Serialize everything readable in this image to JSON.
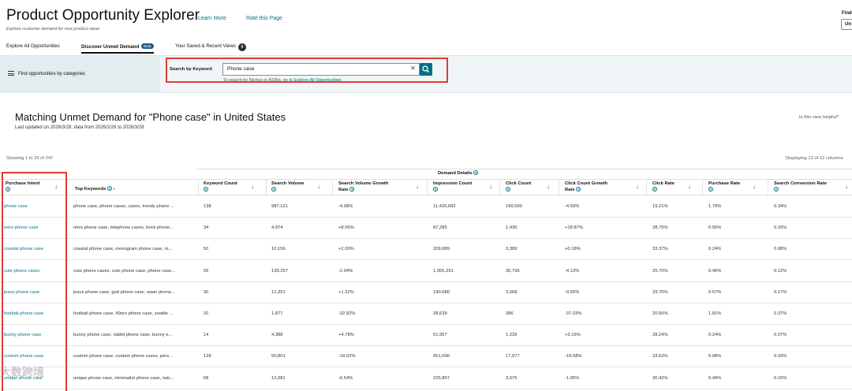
{
  "header": {
    "title": "Product Opportunity Explorer",
    "learn_more": "Learn More",
    "rate_page": "Rate this Page",
    "subtitle": "Explore customer demand for new product ideas",
    "find_label": "Find",
    "find_value": "Un"
  },
  "tabs": [
    {
      "label": "Explore All Opportunities"
    },
    {
      "label": "Discover Unmet Demand",
      "badge": "Beta"
    },
    {
      "label": "Your Saved & Recent Views",
      "count": "0"
    }
  ],
  "search": {
    "category_label": "Find opportunities by categories",
    "label": "Search by Keyword",
    "value": "Phone case",
    "hint_prefix": "To search by Niches or ASINs, go to ",
    "hint_link": "Explore All Opportunities"
  },
  "results": {
    "title": "Matching Unmet Demand for \"Phone case\" in United States",
    "updated": "Last updated on 2026/3/28; data from 2026/2/26 to 2026/3/28",
    "helpful": "Is this view helpful?",
    "showing": "Showing 1 to 25 of 247",
    "displaying": "Displaying 12 of 12 columns"
  },
  "table": {
    "group_label": "Demand Details",
    "columns": {
      "intent": "Purchase Intent",
      "top_keywords": "Top Keywords",
      "keyword_count": "Keyword Count",
      "search_volume": "Search Volume",
      "sv_growth_1": "Search Volume Growth",
      "sv_growth_2": "Rate",
      "impression_count": "Impression Count",
      "click_count": "Click Count",
      "cc_growth_1": "Click Count Growth",
      "cc_growth_2": "Rate",
      "click_rate": "Click Rate",
      "purchase_rate": "Purchase Rate",
      "search_conversion_rate": "Search Conversion Rate"
    },
    "rows": [
      {
        "intent": "phone case",
        "keywords": "phone case, phone cases, cases, trendy phone ...",
        "kc": "138",
        "sv": "987,121",
        "svg": "-4.08%",
        "imp": "11,425,682",
        "cc": "189,590",
        "ccg": "-4.59%",
        "cr": "19.21%",
        "pr": "1.79%",
        "scr": "0.34%"
      },
      {
        "intent": "retro phone case",
        "keywords": "retro phone case, telephone cases, brick phone...",
        "kc": "34",
        "sv": "4,974",
        "svg": "+8.56%",
        "imp": "87,285",
        "cc": "1,430",
        "ccg": "+18.87%",
        "cr": "28.75%",
        "pr": "0.56%",
        "scr": "0.16%"
      },
      {
        "intent": "coastal phone case",
        "keywords": "coastal phone case, monogram phone case, m...",
        "kc": "50",
        "sv": "10,156",
        "svg": "+2.00%",
        "imp": "209,989",
        "cc": "3,389",
        "ccg": "+0.18%",
        "cr": "33.37%",
        "pr": "0.24%",
        "scr": "0.08%"
      },
      {
        "intent": "cute phone cases",
        "keywords": "cute phone cases, cute phone case, phone case...",
        "kc": "55",
        "sv": "139,257",
        "svg": "-2.94%",
        "imp": "1,956,251",
        "cc": "35,796",
        "ccg": "-4.13%",
        "cr": "25.70%",
        "pr": "0.46%",
        "scr": "0.12%"
      },
      {
        "intent": "jesus phone case",
        "keywords": "jesus phone case, god phone case, swan phone...",
        "kc": "30",
        "sv": "12,351",
        "svg": "+1.32%",
        "imp": "190,686",
        "cc": "3,668",
        "ccg": "-0.65%",
        "cr": "29.70%",
        "pr": "0.57%",
        "scr": "0.17%"
      },
      {
        "intent": "football phone case",
        "keywords": "football phone case, 49ers phone case, seattle ...",
        "kc": "20",
        "sv": "1,877",
        "svg": "-32.82%",
        "imp": "28,639",
        "cc": "386",
        "ccg": "-37.03%",
        "cr": "20.56%",
        "pr": "1.81%",
        "scr": "0.37%"
      },
      {
        "intent": "bunny phone case",
        "keywords": "bunny phone case, rabbit phone case, bunny e...",
        "kc": "14",
        "sv": "4,388",
        "svg": "+4.78%",
        "imp": "61,957",
        "cc": "1,239",
        "ccg": "+3.16%",
        "cr": "28.24%",
        "pr": "0.24%",
        "scr": "0.07%"
      },
      {
        "intent": "custom phone case",
        "keywords": "custom phone case, custom phone cases, pers...",
        "kc": "128",
        "sv": "50,801",
        "svg": "-18.02%",
        "imp": "951,696",
        "cc": "17,077",
        "ccg": "-18.58%",
        "cr": "33.62%",
        "pr": "0.08%",
        "scr": "0.03%"
      },
      {
        "intent": "unique phone case",
        "keywords": "unique phone case, minimalist phone case, nak...",
        "kc": "68",
        "sv": "12,081",
        "svg": "-6.54%",
        "imp": "225,867",
        "cc": "3,675",
        "ccg": "-1.95%",
        "cr": "30.42%",
        "pr": "0.49%",
        "scr": "0.15%"
      }
    ]
  },
  "watermark": "大数跨境"
}
